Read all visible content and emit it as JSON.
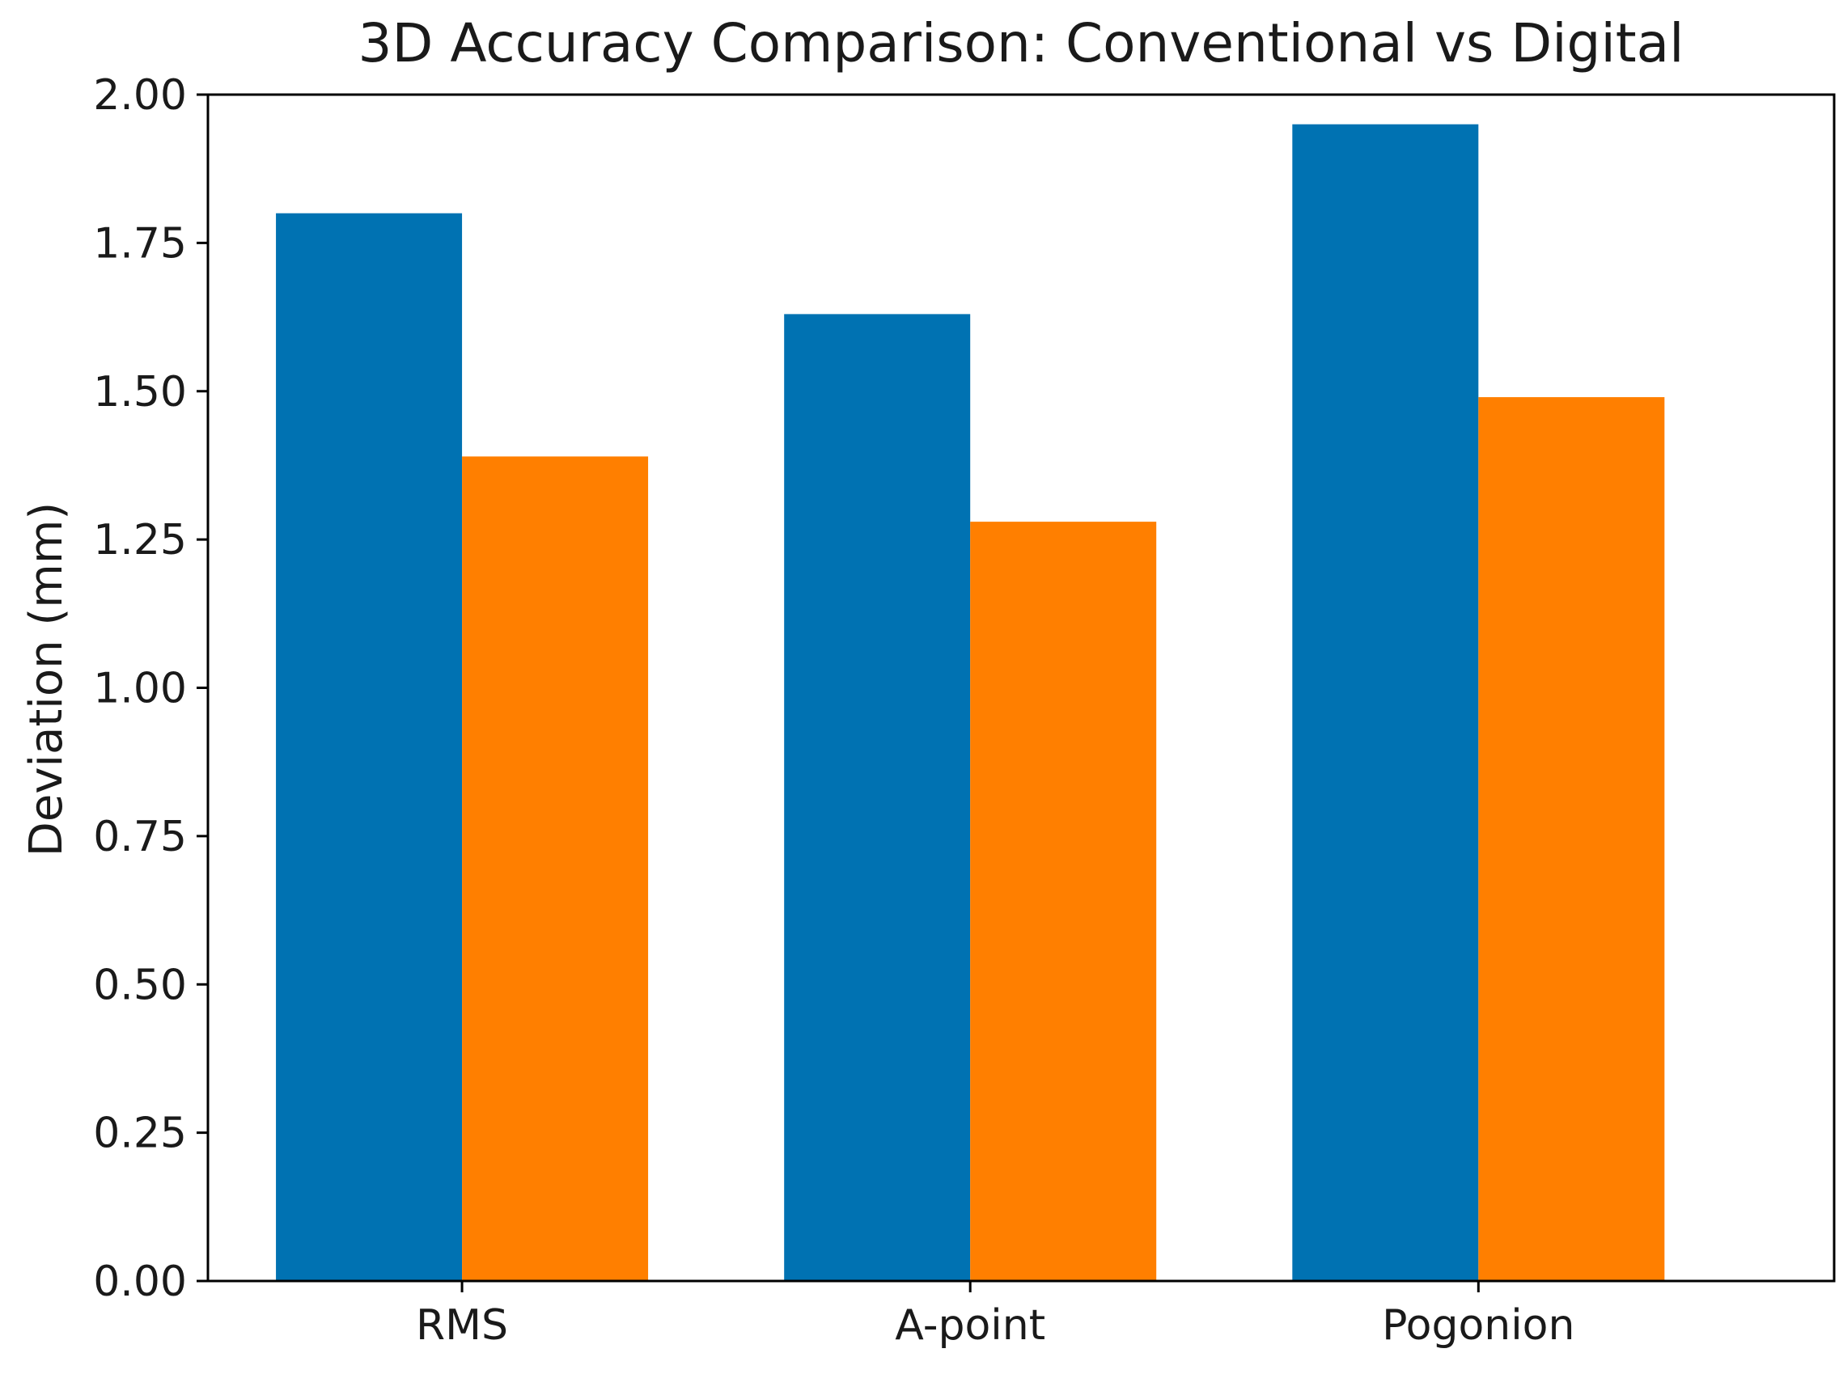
{
  "chart_data": {
    "type": "bar",
    "title": "3D Accuracy Comparison: Conventional vs Digital",
    "xlabel": "",
    "ylabel": "Deviation (mm)",
    "categories": [
      "RMS",
      "A-point",
      "Pogonion"
    ],
    "series": [
      {
        "values": [
          1.8,
          1.63,
          1.95
        ],
        "color": "#0072b2"
      },
      {
        "values": [
          1.39,
          1.28,
          1.49
        ],
        "color": "#ff7f00"
      }
    ],
    "ylim": [
      0,
      2.0
    ],
    "yticks": [
      "0.00",
      "0.25",
      "0.50",
      "0.75",
      "1.00",
      "1.25",
      "1.50",
      "1.75",
      "2.00"
    ],
    "grid": false,
    "legend": "none"
  }
}
